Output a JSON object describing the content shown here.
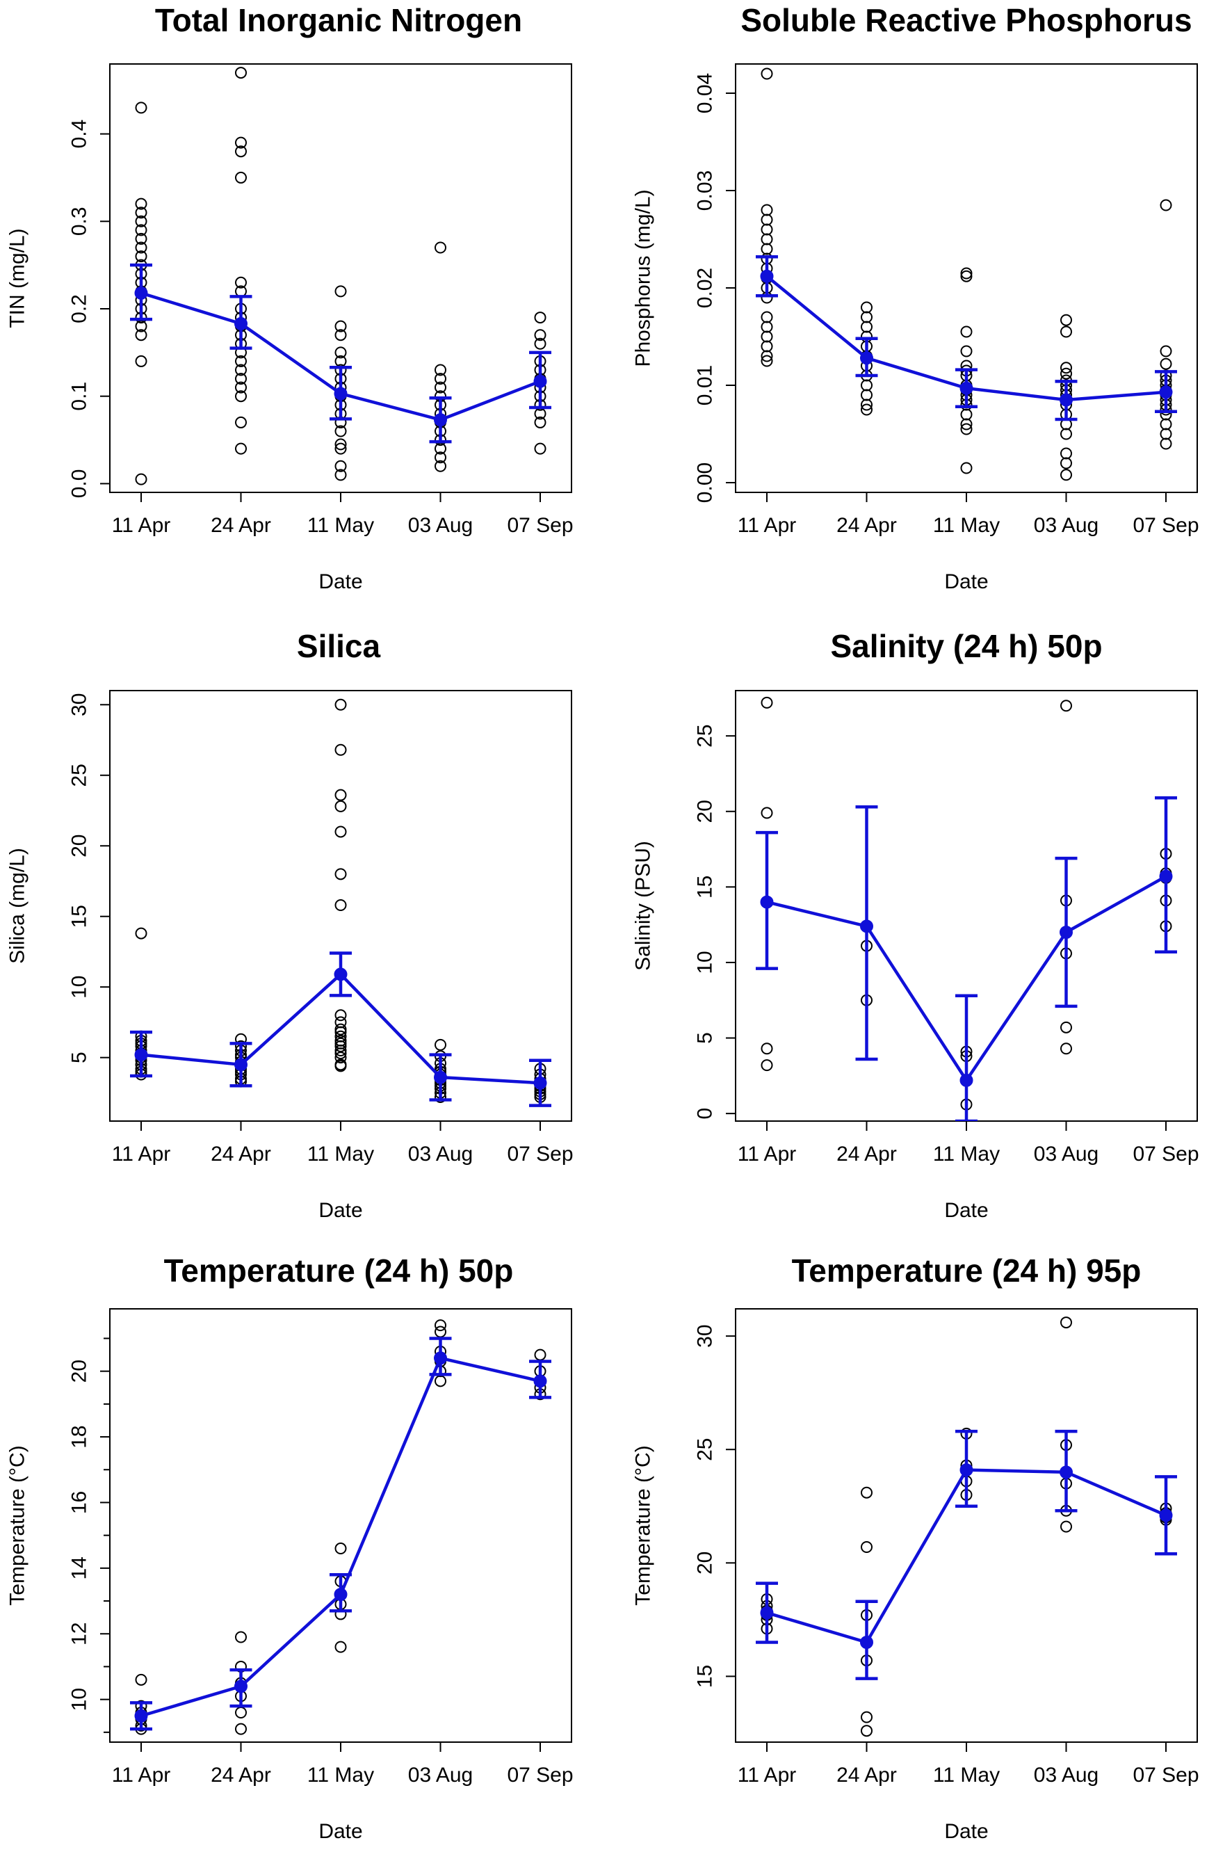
{
  "colors": {
    "mean": "#1010d8",
    "points": "#000000",
    "frame": "#000000"
  },
  "chart_data": [
    {
      "type": "scatter",
      "title": "Total Inorganic Nitrogen",
      "xlabel": "Date",
      "ylabel": "TIN (mg/L)",
      "categories": [
        "11 Apr",
        "24 Apr",
        "11 May",
        "03 Aug",
        "07 Sep"
      ],
      "ylim": [
        -0.01,
        0.48
      ],
      "yticks": [
        0.0,
        0.1,
        0.2,
        0.3,
        0.4
      ],
      "ytick_labels": [
        "0.0",
        "0.1",
        "0.2",
        "0.3",
        "0.4"
      ],
      "minor_ticks": [],
      "points": [
        [
          0.43,
          0.32,
          0.31,
          0.3,
          0.29,
          0.28,
          0.27,
          0.26,
          0.25,
          0.24,
          0.23,
          0.22,
          0.21,
          0.2,
          0.19,
          0.18,
          0.17,
          0.14,
          0.005
        ],
        [
          0.47,
          0.39,
          0.38,
          0.35,
          0.23,
          0.22,
          0.2,
          0.19,
          0.18,
          0.17,
          0.16,
          0.15,
          0.14,
          0.13,
          0.12,
          0.11,
          0.1,
          0.07,
          0.04
        ],
        [
          0.22,
          0.18,
          0.17,
          0.15,
          0.14,
          0.13,
          0.12,
          0.11,
          0.1,
          0.09,
          0.08,
          0.07,
          0.06,
          0.045,
          0.04,
          0.02,
          0.01
        ],
        [
          0.27,
          0.13,
          0.12,
          0.11,
          0.1,
          0.09,
          0.08,
          0.07,
          0.06,
          0.05,
          0.04,
          0.03,
          0.02
        ],
        [
          0.19,
          0.17,
          0.16,
          0.14,
          0.13,
          0.12,
          0.11,
          0.1,
          0.09,
          0.08,
          0.07,
          0.04
        ]
      ],
      "means": [
        0.218,
        0.183,
        0.103,
        0.073,
        0.117
      ],
      "ci": [
        [
          0.188,
          0.25
        ],
        [
          0.155,
          0.214
        ],
        [
          0.074,
          0.133
        ],
        [
          0.048,
          0.098
        ],
        [
          0.087,
          0.15
        ]
      ]
    },
    {
      "type": "scatter",
      "title": "Soluble Reactive Phosphorus",
      "xlabel": "Date",
      "ylabel": "Phosphorus (mg/L)",
      "categories": [
        "11 Apr",
        "24 Apr",
        "11 May",
        "03 Aug",
        "07 Sep"
      ],
      "ylim": [
        -0.001,
        0.043
      ],
      "yticks": [
        0.0,
        0.01,
        0.02,
        0.03,
        0.04
      ],
      "ytick_labels": [
        "0.00",
        "0.01",
        "0.02",
        "0.03",
        "0.04"
      ],
      "minor_ticks": [],
      "points": [
        [
          0.042,
          0.028,
          0.027,
          0.026,
          0.025,
          0.024,
          0.023,
          0.022,
          0.021,
          0.02,
          0.019,
          0.017,
          0.016,
          0.015,
          0.014,
          0.013,
          0.0125
        ],
        [
          0.018,
          0.017,
          0.016,
          0.015,
          0.014,
          0.013,
          0.012,
          0.011,
          0.01,
          0.009,
          0.008,
          0.0075
        ],
        [
          0.0215,
          0.0212,
          0.0155,
          0.0135,
          0.012,
          0.0115,
          0.011,
          0.01,
          0.0095,
          0.009,
          0.0085,
          0.008,
          0.007,
          0.006,
          0.0055,
          0.0015
        ],
        [
          0.0167,
          0.0155,
          0.0118,
          0.0112,
          0.0105,
          0.01,
          0.0095,
          0.009,
          0.0085,
          0.008,
          0.007,
          0.006,
          0.005,
          0.003,
          0.002,
          0.0008
        ],
        [
          0.0285,
          0.0135,
          0.0122,
          0.011,
          0.0105,
          0.01,
          0.0095,
          0.009,
          0.0085,
          0.008,
          0.0075,
          0.007,
          0.006,
          0.005,
          0.004
        ]
      ],
      "means": [
        0.0212,
        0.0128,
        0.0097,
        0.0085,
        0.0093
      ],
      "ci": [
        [
          0.0192,
          0.0232
        ],
        [
          0.011,
          0.0148
        ],
        [
          0.0078,
          0.0116
        ],
        [
          0.0065,
          0.0104
        ],
        [
          0.0073,
          0.0114
        ]
      ]
    },
    {
      "type": "scatter",
      "title": "Silica",
      "xlabel": "Date",
      "ylabel": "Silica (mg/L)",
      "categories": [
        "11 Apr",
        "24 Apr",
        "11 May",
        "03 Aug",
        "07 Sep"
      ],
      "ylim": [
        0.5,
        31
      ],
      "yticks": [
        5,
        10,
        15,
        20,
        25,
        30
      ],
      "ytick_labels": [
        "5",
        "10",
        "15",
        "20",
        "25",
        "30"
      ],
      "minor_ticks": [],
      "points": [
        [
          13.8,
          6.5,
          6.2,
          6.0,
          5.8,
          5.5,
          5.3,
          5.0,
          4.8,
          4.5,
          4.2,
          4.0,
          3.8
        ],
        [
          6.3,
          5.8,
          5.5,
          5.2,
          5.0,
          4.7,
          4.5,
          4.2,
          4.0,
          3.8,
          3.5,
          3.3
        ],
        [
          30.0,
          26.8,
          23.6,
          22.8,
          21.0,
          18.0,
          15.8,
          8.0,
          7.5,
          7.0,
          6.8,
          6.5,
          6.2,
          6.0,
          5.8,
          5.5,
          5.3,
          5.0,
          4.5,
          4.4
        ],
        [
          5.9,
          5.1,
          4.6,
          4.2,
          4.0,
          3.8,
          3.6,
          3.4,
          3.2,
          3.0,
          2.8,
          2.5,
          2.2
        ],
        [
          4.2,
          3.8,
          3.5,
          3.2,
          3.0,
          2.8,
          2.6,
          2.4,
          2.2
        ]
      ],
      "means": [
        5.2,
        4.5,
        10.9,
        3.6,
        3.2
      ],
      "ci": [
        [
          3.7,
          6.8
        ],
        [
          3.0,
          6.0
        ],
        [
          9.4,
          12.4
        ],
        [
          2.0,
          5.2
        ],
        [
          1.6,
          4.8
        ]
      ]
    },
    {
      "type": "scatter",
      "title": "Salinity (24 h) 50p",
      "xlabel": "Date",
      "ylabel": "Salinity (PSU)",
      "categories": [
        "11 Apr",
        "24 Apr",
        "11 May",
        "03 Aug",
        "07 Sep"
      ],
      "ylim": [
        -0.5,
        28
      ],
      "yticks": [
        0,
        5,
        10,
        15,
        20,
        25
      ],
      "ytick_labels": [
        "0",
        "5",
        "10",
        "15",
        "20",
        "25"
      ],
      "minor_ticks": [],
      "points": [
        [
          27.2,
          19.9,
          14.0,
          4.3,
          3.2
        ],
        [
          12.4,
          11.1,
          7.5
        ],
        [
          4.1,
          3.8,
          2.2,
          0.6
        ],
        [
          27.0,
          14.1,
          10.6,
          5.7,
          4.3
        ],
        [
          17.2,
          15.9,
          15.6,
          14.1,
          12.4
        ]
      ],
      "means": [
        14.0,
        12.4,
        2.2,
        12.0,
        15.7
      ],
      "ci": [
        [
          9.6,
          18.6
        ],
        [
          3.6,
          20.3
        ],
        [
          -0.5,
          7.8
        ],
        [
          7.1,
          16.9
        ],
        [
          10.7,
          20.9
        ]
      ]
    },
    {
      "type": "scatter",
      "title": "Temperature (24 h) 50p",
      "xlabel": "Date",
      "ylabel": "Temperature (°C)",
      "categories": [
        "11 Apr",
        "24 Apr",
        "11 May",
        "03 Aug",
        "07 Sep"
      ],
      "ylim": [
        8.7,
        21.9
      ],
      "yticks": [
        10,
        12,
        14,
        16,
        18,
        20
      ],
      "ytick_labels": [
        "10",
        "12",
        "14",
        "16",
        "18",
        "20"
      ],
      "minor_ticks": [
        9,
        11,
        13,
        15,
        17,
        19,
        21
      ],
      "points": [
        [
          10.6,
          9.8,
          9.6,
          9.4,
          9.2,
          9.1
        ],
        [
          11.9,
          11.0,
          10.5,
          10.1,
          9.6,
          9.1
        ],
        [
          14.6,
          13.6,
          13.2,
          12.9,
          12.6,
          11.6
        ],
        [
          21.4,
          21.2,
          20.6,
          20.3,
          20.0,
          19.7
        ],
        [
          20.5,
          20.0,
          19.7,
          19.5,
          19.3
        ]
      ],
      "means": [
        9.5,
        10.4,
        13.2,
        20.4,
        19.7
      ],
      "ci": [
        [
          9.1,
          9.9
        ],
        [
          9.8,
          10.9
        ],
        [
          12.7,
          13.8
        ],
        [
          19.9,
          21.0
        ],
        [
          19.2,
          20.3
        ]
      ]
    },
    {
      "type": "scatter",
      "title": "Temperature (24 h) 95p",
      "xlabel": "Date",
      "ylabel": "Temperature (°C)",
      "categories": [
        "11 Apr",
        "24 Apr",
        "11 May",
        "03 Aug",
        "07 Sep"
      ],
      "ylim": [
        12.1,
        31.2
      ],
      "yticks": [
        15,
        20,
        25,
        30
      ],
      "ytick_labels": [
        "15",
        "20",
        "25",
        "30"
      ],
      "minor_ticks": [],
      "points": [
        [
          18.4,
          18.1,
          17.9,
          17.7,
          17.5,
          17.1
        ],
        [
          23.1,
          20.7,
          17.7,
          16.5,
          15.7,
          13.2,
          12.6
        ],
        [
          25.7,
          24.3,
          23.6,
          23.0
        ],
        [
          30.6,
          25.2,
          24.0,
          23.5,
          22.3,
          21.6
        ],
        [
          22.4,
          22.2,
          22.0,
          21.9
        ]
      ],
      "means": [
        17.8,
        16.5,
        24.1,
        24.0,
        22.1
      ],
      "ci": [
        [
          16.5,
          19.1
        ],
        [
          14.9,
          18.3
        ],
        [
          22.5,
          25.8
        ],
        [
          22.3,
          25.8
        ],
        [
          20.4,
          23.8
        ]
      ]
    }
  ]
}
